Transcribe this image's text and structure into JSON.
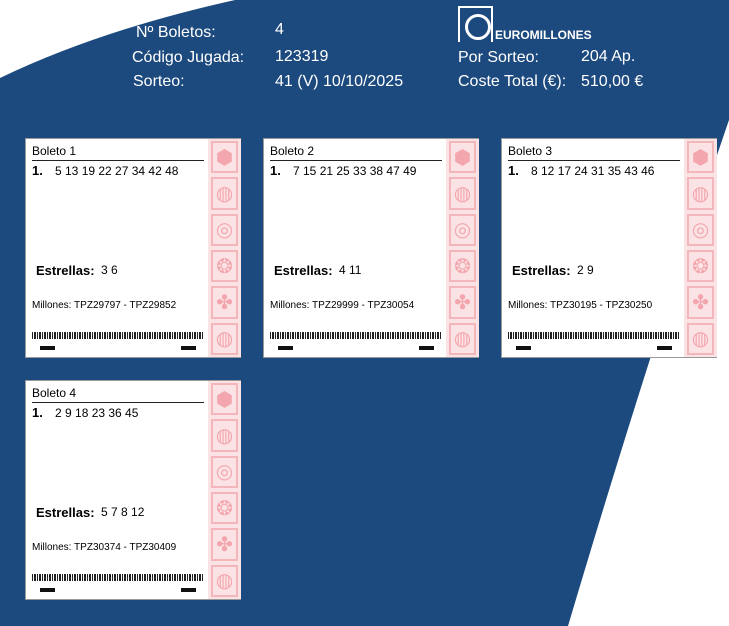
{
  "header": {
    "boletos_label": "Nº Boletos:",
    "boletos_value": "4",
    "codigo_label": "Código Jugada:",
    "codigo_value": "123319",
    "sorteo_label": "Sorteo:",
    "sorteo_value": "41  (V) 10/10/2025",
    "por_sorteo_label": "Por Sorteo:",
    "por_sorteo_value": "204 Ap.",
    "coste_label": "Coste Total (€):",
    "coste_value": "510,00 €"
  },
  "logo": {
    "text": "EUROMILLONES"
  },
  "colors": {
    "background": "#1d4a7e",
    "strip": "#fbe3e5"
  },
  "tickets": [
    {
      "title": "Boleto 1",
      "line": "1.",
      "numbers": "5 13 19 22 27 34 42 48",
      "stars_label": "Estrellas:",
      "stars": "3 6",
      "millones": "Millones: TPZ29797 - TPZ29852"
    },
    {
      "title": "Boleto 2",
      "line": "1.",
      "numbers": "7 15 21 25 33 38 47 49",
      "stars_label": "Estrellas:",
      "stars": "4 11",
      "millones": "Millones: TPZ29999 - TPZ30054"
    },
    {
      "title": "Boleto 3",
      "line": "1.",
      "numbers": "8 12 17 24 31 35 43 46",
      "stars_label": "Estrellas:",
      "stars": "2 9",
      "millones": "Millones: TPZ30195 - TPZ30250"
    },
    {
      "title": "Boleto 4",
      "line": "1.",
      "numbers": "2 9 18 23 36 45",
      "stars_label": "Estrellas:",
      "stars": "5 7 8 12",
      "millones": "Millones: TPZ30374 - TPZ30409"
    }
  ],
  "strip_icons": [
    "cube-icon",
    "striped-ball-icon",
    "swirl-icon",
    "dotted-ball-icon",
    "clover-icon",
    "striped-ball-icon"
  ]
}
